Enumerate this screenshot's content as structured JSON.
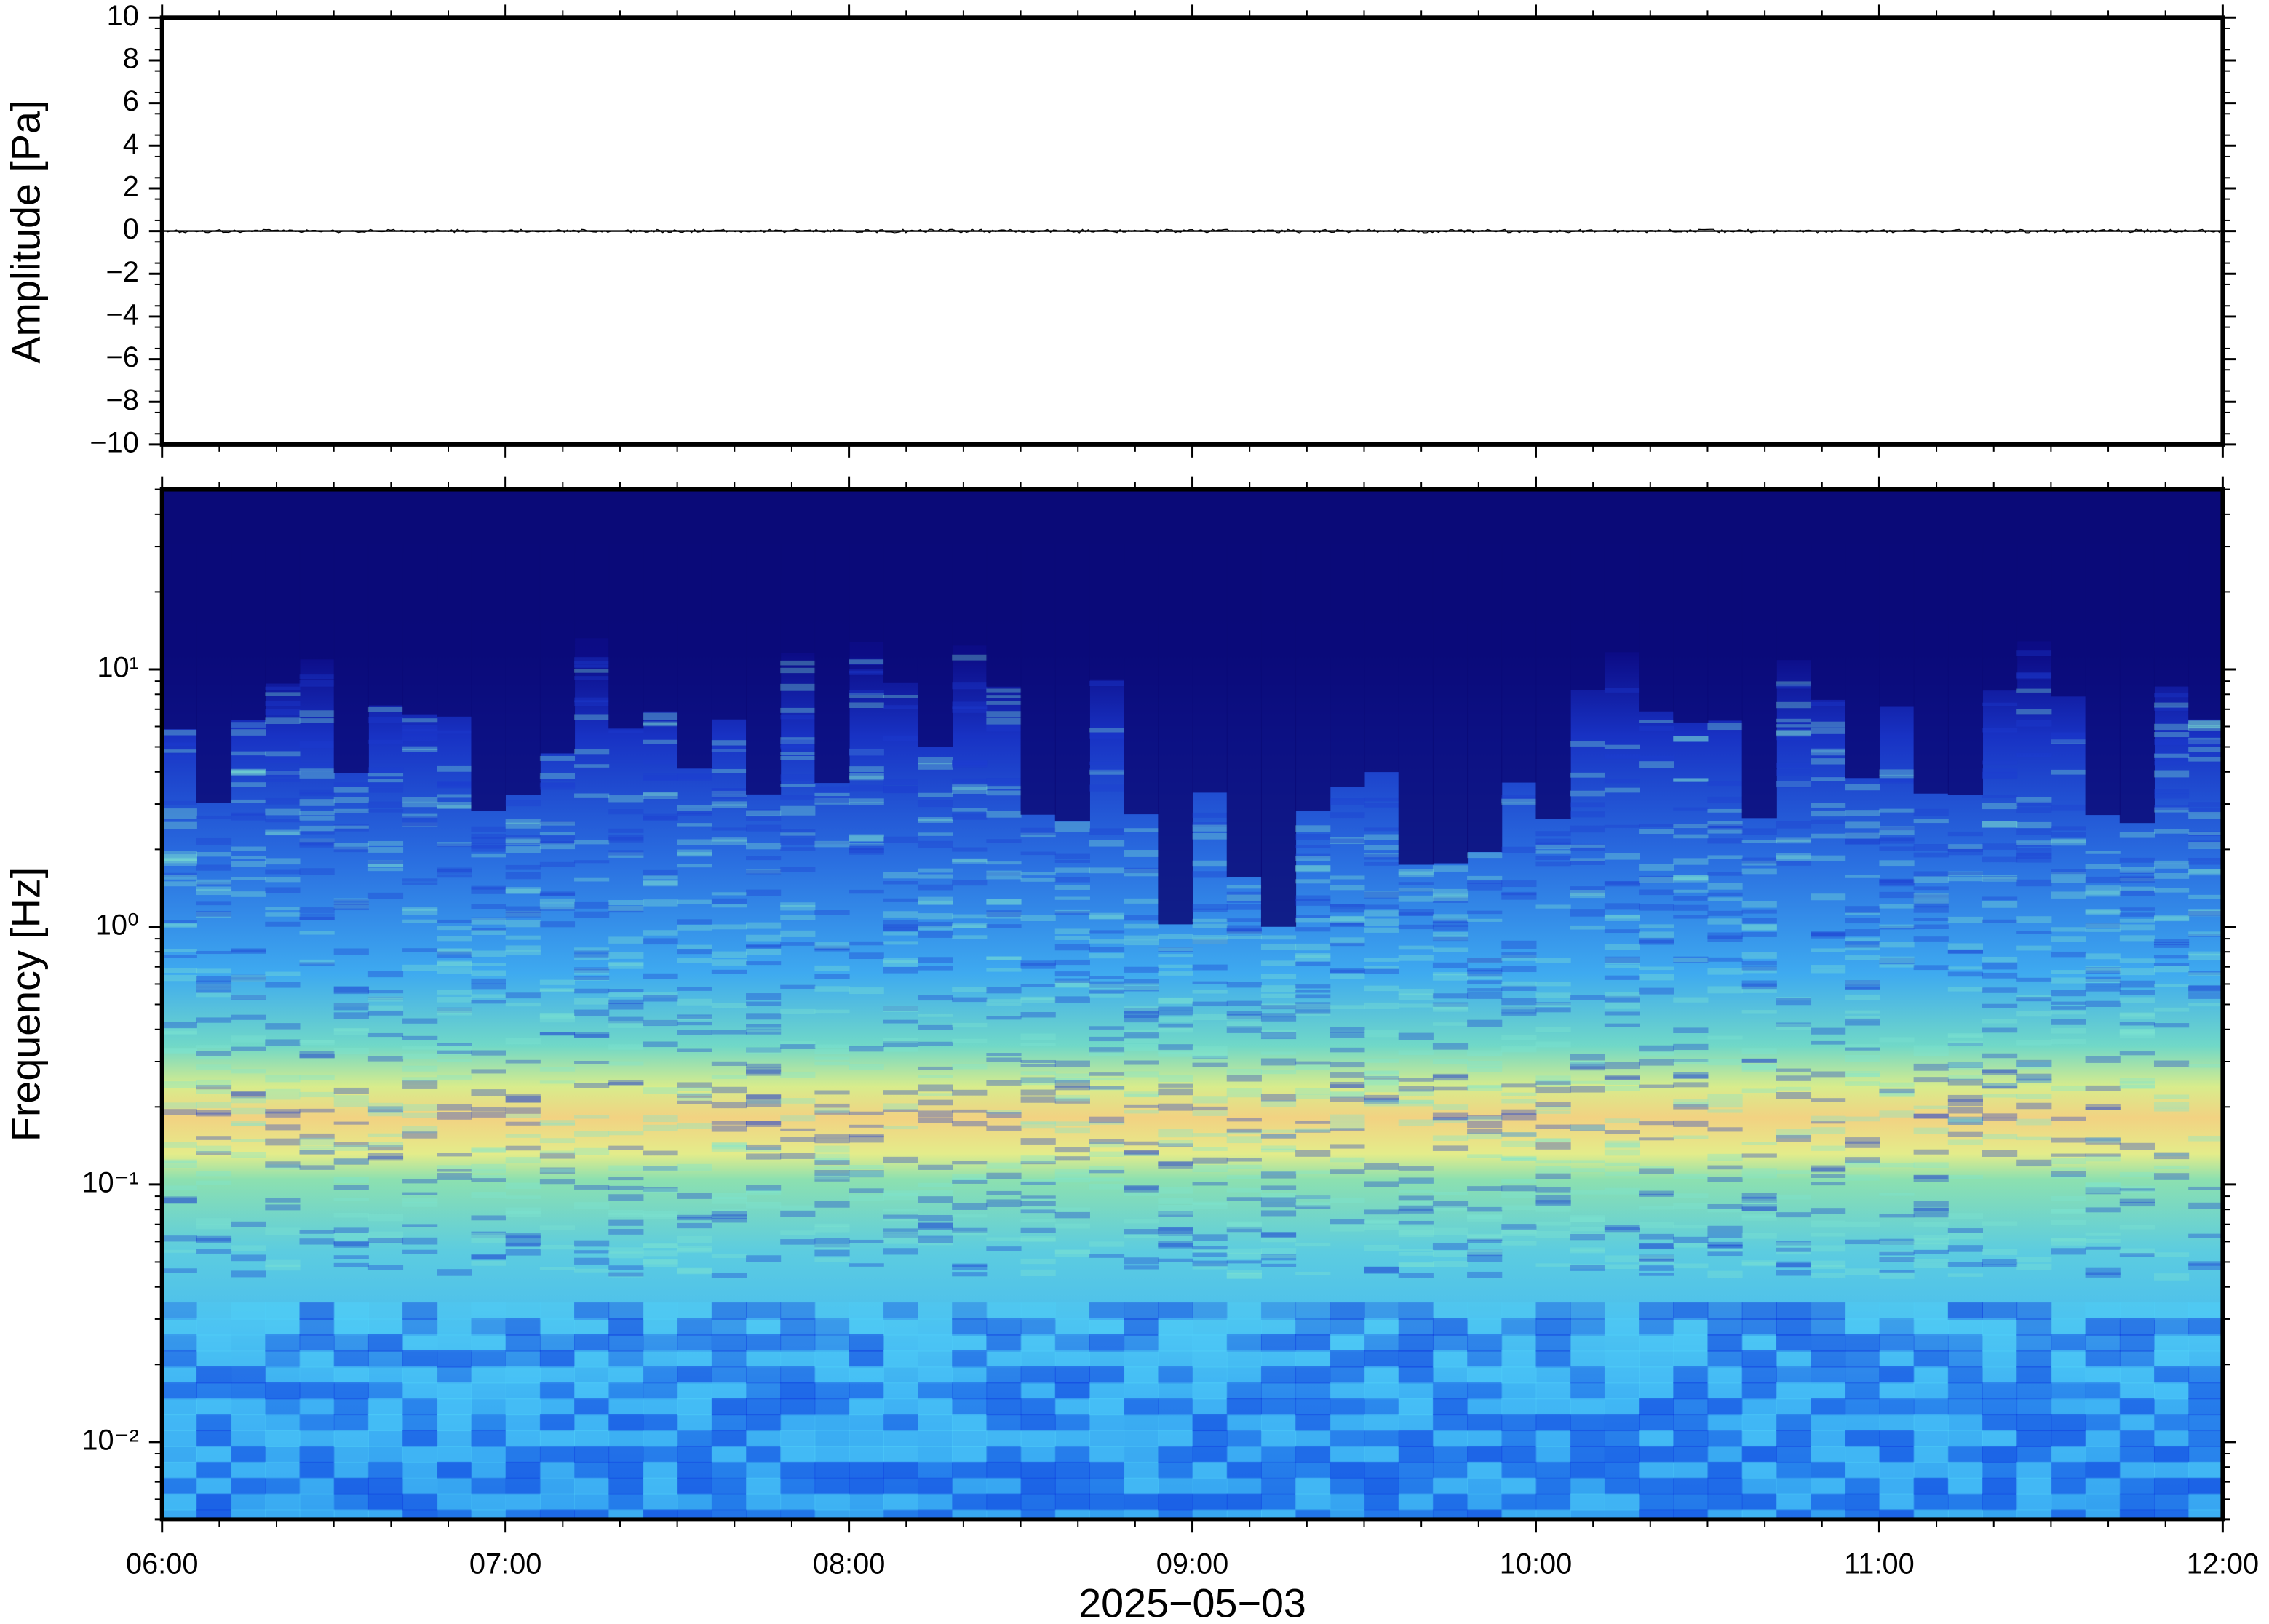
{
  "chart_data": [
    {
      "type": "line",
      "ylabel": "Amplitude [Pa]",
      "x": [
        6,
        12
      ],
      "values": [
        0,
        0
      ],
      "color": "#000000",
      "xlim": [
        6,
        12
      ],
      "xticks": [
        6,
        7,
        8,
        9,
        10,
        11,
        12
      ],
      "ylim": [
        -10,
        10
      ],
      "yticks": [
        {
          "value": -10,
          "label": "−10"
        },
        {
          "value": -8,
          "label": "−8"
        },
        {
          "value": -6,
          "label": "−6"
        },
        {
          "value": -4,
          "label": "−4"
        },
        {
          "value": -2,
          "label": "−2"
        },
        0,
        2,
        4,
        6,
        8,
        10
      ]
    },
    {
      "type": "spectrogram",
      "ylabel": "Frequency [Hz]",
      "xlabel": "2025−05−03",
      "yscale": "log",
      "xlim": [
        6,
        12
      ],
      "xticks": [
        {
          "value": 6,
          "label": "06:00"
        },
        {
          "value": 7,
          "label": "07:00"
        },
        {
          "value": 8,
          "label": "08:00"
        },
        {
          "value": 9,
          "label": "09:00"
        },
        {
          "value": 10,
          "label": "10:00"
        },
        {
          "value": 11,
          "label": "11:00"
        },
        {
          "value": 12,
          "label": "12:00"
        }
      ],
      "ylim": [
        0.005,
        50
      ],
      "yticks": [
        {
          "value": 0.01,
          "label": "10⁻²"
        },
        {
          "value": 0.1,
          "label": "10⁻¹"
        },
        {
          "value": 1,
          "label": "10⁰"
        },
        {
          "value": 10,
          "label": "10¹"
        }
      ]
    }
  ]
}
